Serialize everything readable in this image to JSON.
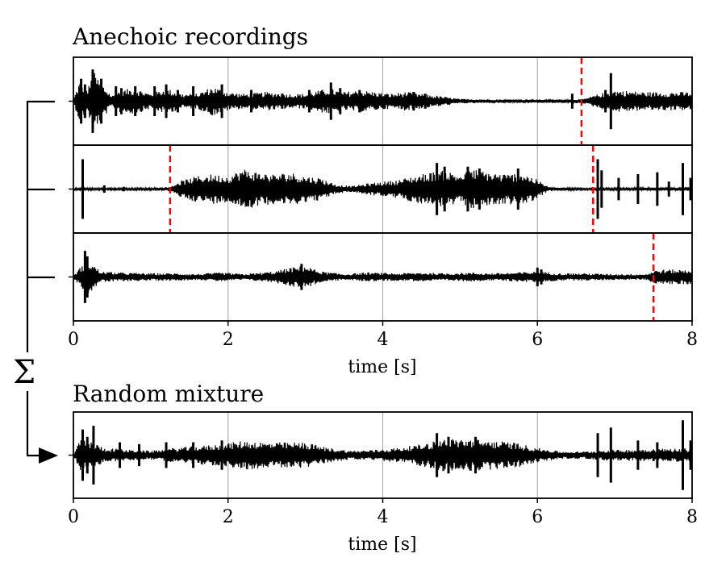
{
  "figure": {
    "title_top": "Anechoic recordings",
    "title_bottom": "Random mixture",
    "sum_symbol": "Σ"
  },
  "chart_data": [
    {
      "type": "line",
      "title": "Anechoic recordings",
      "xlabel": "time [s]",
      "xlim": [
        0,
        8
      ],
      "xticks": [
        "0",
        "2",
        "4",
        "6",
        "8"
      ],
      "grid": "vertical",
      "colors": {
        "waveform": "#000000",
        "marker": "#ff0000",
        "grid": "#b0b0b0"
      },
      "panels": [
        {
          "name": "recording-1",
          "amplitude_scale": 0.85,
          "onset_markers_s": [
            6.57
          ],
          "envelope": [
            {
              "t": 0.0,
              "a": 0.05
            },
            {
              "t": 0.08,
              "a": 0.55
            },
            {
              "t": 0.18,
              "a": 0.3
            },
            {
              "t": 0.26,
              "a": 0.8
            },
            {
              "t": 0.36,
              "a": 0.5
            },
            {
              "t": 0.5,
              "a": 0.15
            },
            {
              "t": 0.6,
              "a": 0.3
            },
            {
              "t": 0.8,
              "a": 0.35
            },
            {
              "t": 1.0,
              "a": 0.2
            },
            {
              "t": 1.2,
              "a": 0.35
            },
            {
              "t": 1.4,
              "a": 0.2
            },
            {
              "t": 1.6,
              "a": 0.2
            },
            {
              "t": 1.8,
              "a": 0.4
            },
            {
              "t": 2.0,
              "a": 0.25
            },
            {
              "t": 2.2,
              "a": 0.2
            },
            {
              "t": 2.5,
              "a": 0.25
            },
            {
              "t": 2.8,
              "a": 0.2
            },
            {
              "t": 3.0,
              "a": 0.2
            },
            {
              "t": 3.3,
              "a": 0.35
            },
            {
              "t": 3.5,
              "a": 0.25
            },
            {
              "t": 3.7,
              "a": 0.3
            },
            {
              "t": 3.9,
              "a": 0.25
            },
            {
              "t": 4.1,
              "a": 0.2
            },
            {
              "t": 4.3,
              "a": 0.25
            },
            {
              "t": 4.5,
              "a": 0.2
            },
            {
              "t": 4.7,
              "a": 0.15
            },
            {
              "t": 5.0,
              "a": 0.06
            },
            {
              "t": 5.5,
              "a": 0.05
            },
            {
              "t": 6.0,
              "a": 0.05
            },
            {
              "t": 6.4,
              "a": 0.05
            },
            {
              "t": 6.6,
              "a": 0.06
            },
            {
              "t": 6.8,
              "a": 0.2
            },
            {
              "t": 7.0,
              "a": 0.3
            },
            {
              "t": 7.4,
              "a": 0.25
            },
            {
              "t": 7.7,
              "a": 0.25
            },
            {
              "t": 8.0,
              "a": 0.25
            }
          ],
          "spikes": [
            {
              "t": 0.1,
              "a": 0.6
            },
            {
              "t": 0.15,
              "a": 0.45
            },
            {
              "t": 0.25,
              "a": 0.85
            },
            {
              "t": 0.36,
              "a": 0.6
            },
            {
              "t": 0.55,
              "a": 0.4
            },
            {
              "t": 0.62,
              "a": 0.35
            },
            {
              "t": 0.8,
              "a": 0.4
            },
            {
              "t": 1.05,
              "a": 0.4
            },
            {
              "t": 1.2,
              "a": 0.45
            },
            {
              "t": 1.35,
              "a": 0.3
            },
            {
              "t": 1.55,
              "a": 0.4
            },
            {
              "t": 1.92,
              "a": 0.45
            },
            {
              "t": 2.3,
              "a": 0.3
            },
            {
              "t": 2.7,
              "a": 0.2
            },
            {
              "t": 3.05,
              "a": 0.3
            },
            {
              "t": 3.33,
              "a": 0.5
            },
            {
              "t": 3.45,
              "a": 0.35
            },
            {
              "t": 3.7,
              "a": 0.3
            },
            {
              "t": 4.4,
              "a": 0.25
            },
            {
              "t": 4.55,
              "a": 0.2
            },
            {
              "t": 6.45,
              "a": 0.2
            },
            {
              "t": 6.95,
              "a": 0.75
            },
            {
              "t": 6.88,
              "a": 0.3
            }
          ]
        },
        {
          "name": "recording-2",
          "amplitude_scale": 0.85,
          "onset_markers_s": [
            1.25,
            6.72
          ],
          "envelope": [
            {
              "t": 0.0,
              "a": 0.03
            },
            {
              "t": 0.2,
              "a": 0.03
            },
            {
              "t": 0.5,
              "a": 0.03
            },
            {
              "t": 1.0,
              "a": 0.03
            },
            {
              "t": 1.25,
              "a": 0.06
            },
            {
              "t": 1.35,
              "a": 0.2
            },
            {
              "t": 1.6,
              "a": 0.35
            },
            {
              "t": 1.8,
              "a": 0.4
            },
            {
              "t": 2.0,
              "a": 0.35
            },
            {
              "t": 2.2,
              "a": 0.55
            },
            {
              "t": 2.4,
              "a": 0.45
            },
            {
              "t": 2.6,
              "a": 0.4
            },
            {
              "t": 2.8,
              "a": 0.45
            },
            {
              "t": 3.0,
              "a": 0.35
            },
            {
              "t": 3.2,
              "a": 0.3
            },
            {
              "t": 3.4,
              "a": 0.12
            },
            {
              "t": 3.6,
              "a": 0.08
            },
            {
              "t": 3.8,
              "a": 0.15
            },
            {
              "t": 4.0,
              "a": 0.2
            },
            {
              "t": 4.2,
              "a": 0.25
            },
            {
              "t": 4.4,
              "a": 0.35
            },
            {
              "t": 4.6,
              "a": 0.45
            },
            {
              "t": 4.8,
              "a": 0.5
            },
            {
              "t": 5.0,
              "a": 0.4
            },
            {
              "t": 5.2,
              "a": 0.55
            },
            {
              "t": 5.4,
              "a": 0.45
            },
            {
              "t": 5.6,
              "a": 0.4
            },
            {
              "t": 5.8,
              "a": 0.45
            },
            {
              "t": 6.0,
              "a": 0.25
            },
            {
              "t": 6.15,
              "a": 0.05
            },
            {
              "t": 6.5,
              "a": 0.03
            },
            {
              "t": 6.72,
              "a": 0.03
            },
            {
              "t": 7.0,
              "a": 0.03
            },
            {
              "t": 8.0,
              "a": 0.05
            }
          ],
          "spikes": [
            {
              "t": 0.12,
              "a": 0.8
            },
            {
              "t": 0.4,
              "a": 0.1
            },
            {
              "t": 0.65,
              "a": 0.06
            },
            {
              "t": 4.7,
              "a": 0.7
            },
            {
              "t": 4.8,
              "a": 0.6
            },
            {
              "t": 5.1,
              "a": 0.6
            },
            {
              "t": 5.25,
              "a": 0.55
            },
            {
              "t": 5.75,
              "a": 0.55
            },
            {
              "t": 6.78,
              "a": 0.8
            },
            {
              "t": 6.83,
              "a": 0.5
            },
            {
              "t": 7.05,
              "a": 0.3
            },
            {
              "t": 7.3,
              "a": 0.4
            },
            {
              "t": 7.55,
              "a": 0.45
            },
            {
              "t": 7.7,
              "a": 0.2
            },
            {
              "t": 7.88,
              "a": 0.7
            },
            {
              "t": 7.98,
              "a": 0.3
            }
          ]
        },
        {
          "name": "recording-3",
          "amplitude_scale": 0.85,
          "onset_markers_s": [
            7.5
          ],
          "envelope": [
            {
              "t": 0.0,
              "a": 0.03
            },
            {
              "t": 0.1,
              "a": 0.3
            },
            {
              "t": 0.2,
              "a": 0.45
            },
            {
              "t": 0.35,
              "a": 0.15
            },
            {
              "t": 0.6,
              "a": 0.12
            },
            {
              "t": 1.0,
              "a": 0.1
            },
            {
              "t": 1.3,
              "a": 0.1
            },
            {
              "t": 1.6,
              "a": 0.08
            },
            {
              "t": 1.9,
              "a": 0.12
            },
            {
              "t": 2.2,
              "a": 0.08
            },
            {
              "t": 2.6,
              "a": 0.15
            },
            {
              "t": 2.8,
              "a": 0.25
            },
            {
              "t": 3.0,
              "a": 0.3
            },
            {
              "t": 3.2,
              "a": 0.15
            },
            {
              "t": 3.5,
              "a": 0.08
            },
            {
              "t": 3.8,
              "a": 0.12
            },
            {
              "t": 4.2,
              "a": 0.1
            },
            {
              "t": 4.5,
              "a": 0.12
            },
            {
              "t": 4.8,
              "a": 0.1
            },
            {
              "t": 5.1,
              "a": 0.12
            },
            {
              "t": 5.4,
              "a": 0.1
            },
            {
              "t": 5.7,
              "a": 0.12
            },
            {
              "t": 6.0,
              "a": 0.15
            },
            {
              "t": 6.3,
              "a": 0.1
            },
            {
              "t": 6.6,
              "a": 0.1
            },
            {
              "t": 7.0,
              "a": 0.08
            },
            {
              "t": 7.4,
              "a": 0.08
            },
            {
              "t": 7.55,
              "a": 0.2
            },
            {
              "t": 7.8,
              "a": 0.2
            },
            {
              "t": 8.0,
              "a": 0.2
            }
          ],
          "spikes": [
            {
              "t": 0.15,
              "a": 0.7
            },
            {
              "t": 0.18,
              "a": 0.55
            },
            {
              "t": 2.95,
              "a": 0.35
            },
            {
              "t": 6.0,
              "a": 0.25
            },
            {
              "t": 6.05,
              "a": 0.2
            }
          ]
        }
      ]
    },
    {
      "type": "line",
      "title": "Random mixture",
      "xlabel": "time [s]",
      "xlim": [
        0,
        8
      ],
      "xticks": [
        "0",
        "2",
        "4",
        "6",
        "8"
      ],
      "grid": "vertical",
      "colors": {
        "waveform": "#000000",
        "grid": "#b0b0b0"
      },
      "panels": [
        {
          "name": "mixture",
          "amplitude_scale": 0.85,
          "onset_markers_s": [],
          "envelope": [
            {
              "t": 0.0,
              "a": 0.05
            },
            {
              "t": 0.1,
              "a": 0.45
            },
            {
              "t": 0.25,
              "a": 0.35
            },
            {
              "t": 0.4,
              "a": 0.2
            },
            {
              "t": 0.7,
              "a": 0.15
            },
            {
              "t": 1.0,
              "a": 0.12
            },
            {
              "t": 1.3,
              "a": 0.2
            },
            {
              "t": 1.6,
              "a": 0.25
            },
            {
              "t": 1.9,
              "a": 0.3
            },
            {
              "t": 2.2,
              "a": 0.4
            },
            {
              "t": 2.5,
              "a": 0.35
            },
            {
              "t": 2.8,
              "a": 0.35
            },
            {
              "t": 3.0,
              "a": 0.35
            },
            {
              "t": 3.3,
              "a": 0.2
            },
            {
              "t": 3.6,
              "a": 0.12
            },
            {
              "t": 3.9,
              "a": 0.15
            },
            {
              "t": 4.2,
              "a": 0.2
            },
            {
              "t": 4.5,
              "a": 0.3
            },
            {
              "t": 4.8,
              "a": 0.45
            },
            {
              "t": 5.1,
              "a": 0.45
            },
            {
              "t": 5.4,
              "a": 0.4
            },
            {
              "t": 5.7,
              "a": 0.35
            },
            {
              "t": 6.0,
              "a": 0.2
            },
            {
              "t": 6.3,
              "a": 0.1
            },
            {
              "t": 6.6,
              "a": 0.1
            },
            {
              "t": 6.9,
              "a": 0.15
            },
            {
              "t": 7.2,
              "a": 0.15
            },
            {
              "t": 7.5,
              "a": 0.18
            },
            {
              "t": 7.8,
              "a": 0.18
            },
            {
              "t": 8.0,
              "a": 0.2
            }
          ],
          "spikes": [
            {
              "t": 0.12,
              "a": 0.7
            },
            {
              "t": 0.18,
              "a": 0.5
            },
            {
              "t": 0.26,
              "a": 0.8
            },
            {
              "t": 0.6,
              "a": 0.35
            },
            {
              "t": 0.85,
              "a": 0.3
            },
            {
              "t": 1.2,
              "a": 0.35
            },
            {
              "t": 1.55,
              "a": 0.35
            },
            {
              "t": 1.92,
              "a": 0.4
            },
            {
              "t": 4.7,
              "a": 0.6
            },
            {
              "t": 4.85,
              "a": 0.5
            },
            {
              "t": 5.2,
              "a": 0.5
            },
            {
              "t": 6.78,
              "a": 0.6
            },
            {
              "t": 6.95,
              "a": 0.75
            },
            {
              "t": 7.3,
              "a": 0.4
            },
            {
              "t": 7.55,
              "a": 0.35
            },
            {
              "t": 7.88,
              "a": 0.95
            },
            {
              "t": 7.98,
              "a": 0.4
            }
          ]
        }
      ]
    }
  ]
}
